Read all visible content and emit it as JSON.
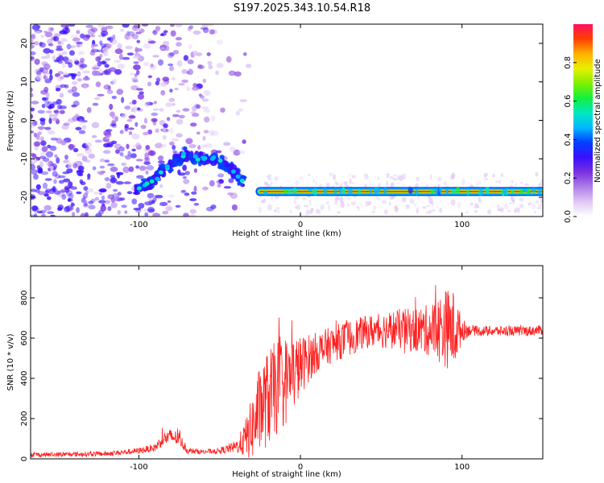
{
  "title": "S197.2025.343.10.54.R18",
  "chart_data": [
    {
      "type": "heatmap",
      "xlabel": "Height of straight line (km)",
      "ylabel": "Frequency (Hz)",
      "xlim": [
        -167,
        150
      ],
      "ylim": [
        -25,
        25
      ],
      "xticks": [
        -100,
        0,
        100
      ],
      "xtick_labels": [
        "-100",
        "0",
        "100"
      ],
      "yticks": [
        -20,
        -10,
        0,
        10,
        20
      ],
      "ytick_labels": [
        "-20",
        "-10",
        "0",
        "10",
        "20"
      ],
      "colorbar": {
        "label": "Normalized spectral amplitude",
        "range": [
          0,
          1
        ],
        "ticks": [
          0.0,
          0.2,
          0.4,
          0.6,
          0.8
        ],
        "tick_labels": [
          "0.0",
          "0.2",
          "0.4",
          "0.6",
          "0.8"
        ],
        "colormap": [
          "#ffffff",
          "#e0c8f4",
          "#b07ee8",
          "#7a30e0",
          "#3a10ff",
          "#0040ff",
          "#00b8ff",
          "#00e8c0",
          "#10f040",
          "#80f000",
          "#e8f000",
          "#ffb000",
          "#ff4000",
          "#ff1060"
        ]
      },
      "features": {
        "noise_region_x": [
          -167,
          -30
        ],
        "rising_track": [
          [
            -102,
            -18
          ],
          [
            -92,
            -16
          ],
          [
            -82,
            -12
          ],
          [
            -72,
            -9
          ],
          [
            -62,
            -10
          ],
          [
            -52,
            -10
          ],
          [
            -42,
            -13
          ],
          [
            -35,
            -16
          ]
        ],
        "steady_track_freq": -18.5,
        "steady_track_x": [
          -25,
          150
        ]
      }
    },
    {
      "type": "line",
      "xlabel": "Height of straight line (km)",
      "ylabel": "SNR (10 * v/v)",
      "xlim": [
        -167,
        150
      ],
      "ylim": [
        0,
        960
      ],
      "xticks": [
        -100,
        0,
        100
      ],
      "xtick_labels": [
        "-100",
        "0",
        "100"
      ],
      "yticks": [
        0,
        200,
        400,
        600,
        800
      ],
      "ytick_labels": [
        "0",
        "200",
        "400",
        "600",
        "800"
      ],
      "color": "#ff2020",
      "envelope": {
        "x": [
          -167,
          -120,
          -100,
          -90,
          -85,
          -80,
          -75,
          -70,
          -60,
          -50,
          -40,
          -35,
          -30,
          -25,
          -20,
          -15,
          -10,
          -5,
          0,
          5,
          10,
          20,
          30,
          40,
          50,
          60,
          70,
          80,
          90,
          95,
          100,
          105,
          110,
          120,
          130,
          140,
          150
        ],
        "baseline": [
          20,
          25,
          40,
          55,
          100,
          110,
          100,
          40,
          35,
          40,
          60,
          90,
          150,
          250,
          300,
          350,
          380,
          420,
          460,
          500,
          530,
          570,
          600,
          630,
          640,
          645,
          640,
          640,
          650,
          640,
          640,
          640,
          635,
          635,
          635,
          635,
          640
        ],
        "amplitude": [
          12,
          12,
          15,
          20,
          35,
          40,
          35,
          15,
          12,
          15,
          30,
          80,
          160,
          220,
          240,
          240,
          230,
          200,
          150,
          120,
          100,
          90,
          90,
          80,
          90,
          100,
          110,
          130,
          200,
          200,
          60,
          25,
          25,
          25,
          25,
          25,
          25
        ]
      }
    }
  ]
}
